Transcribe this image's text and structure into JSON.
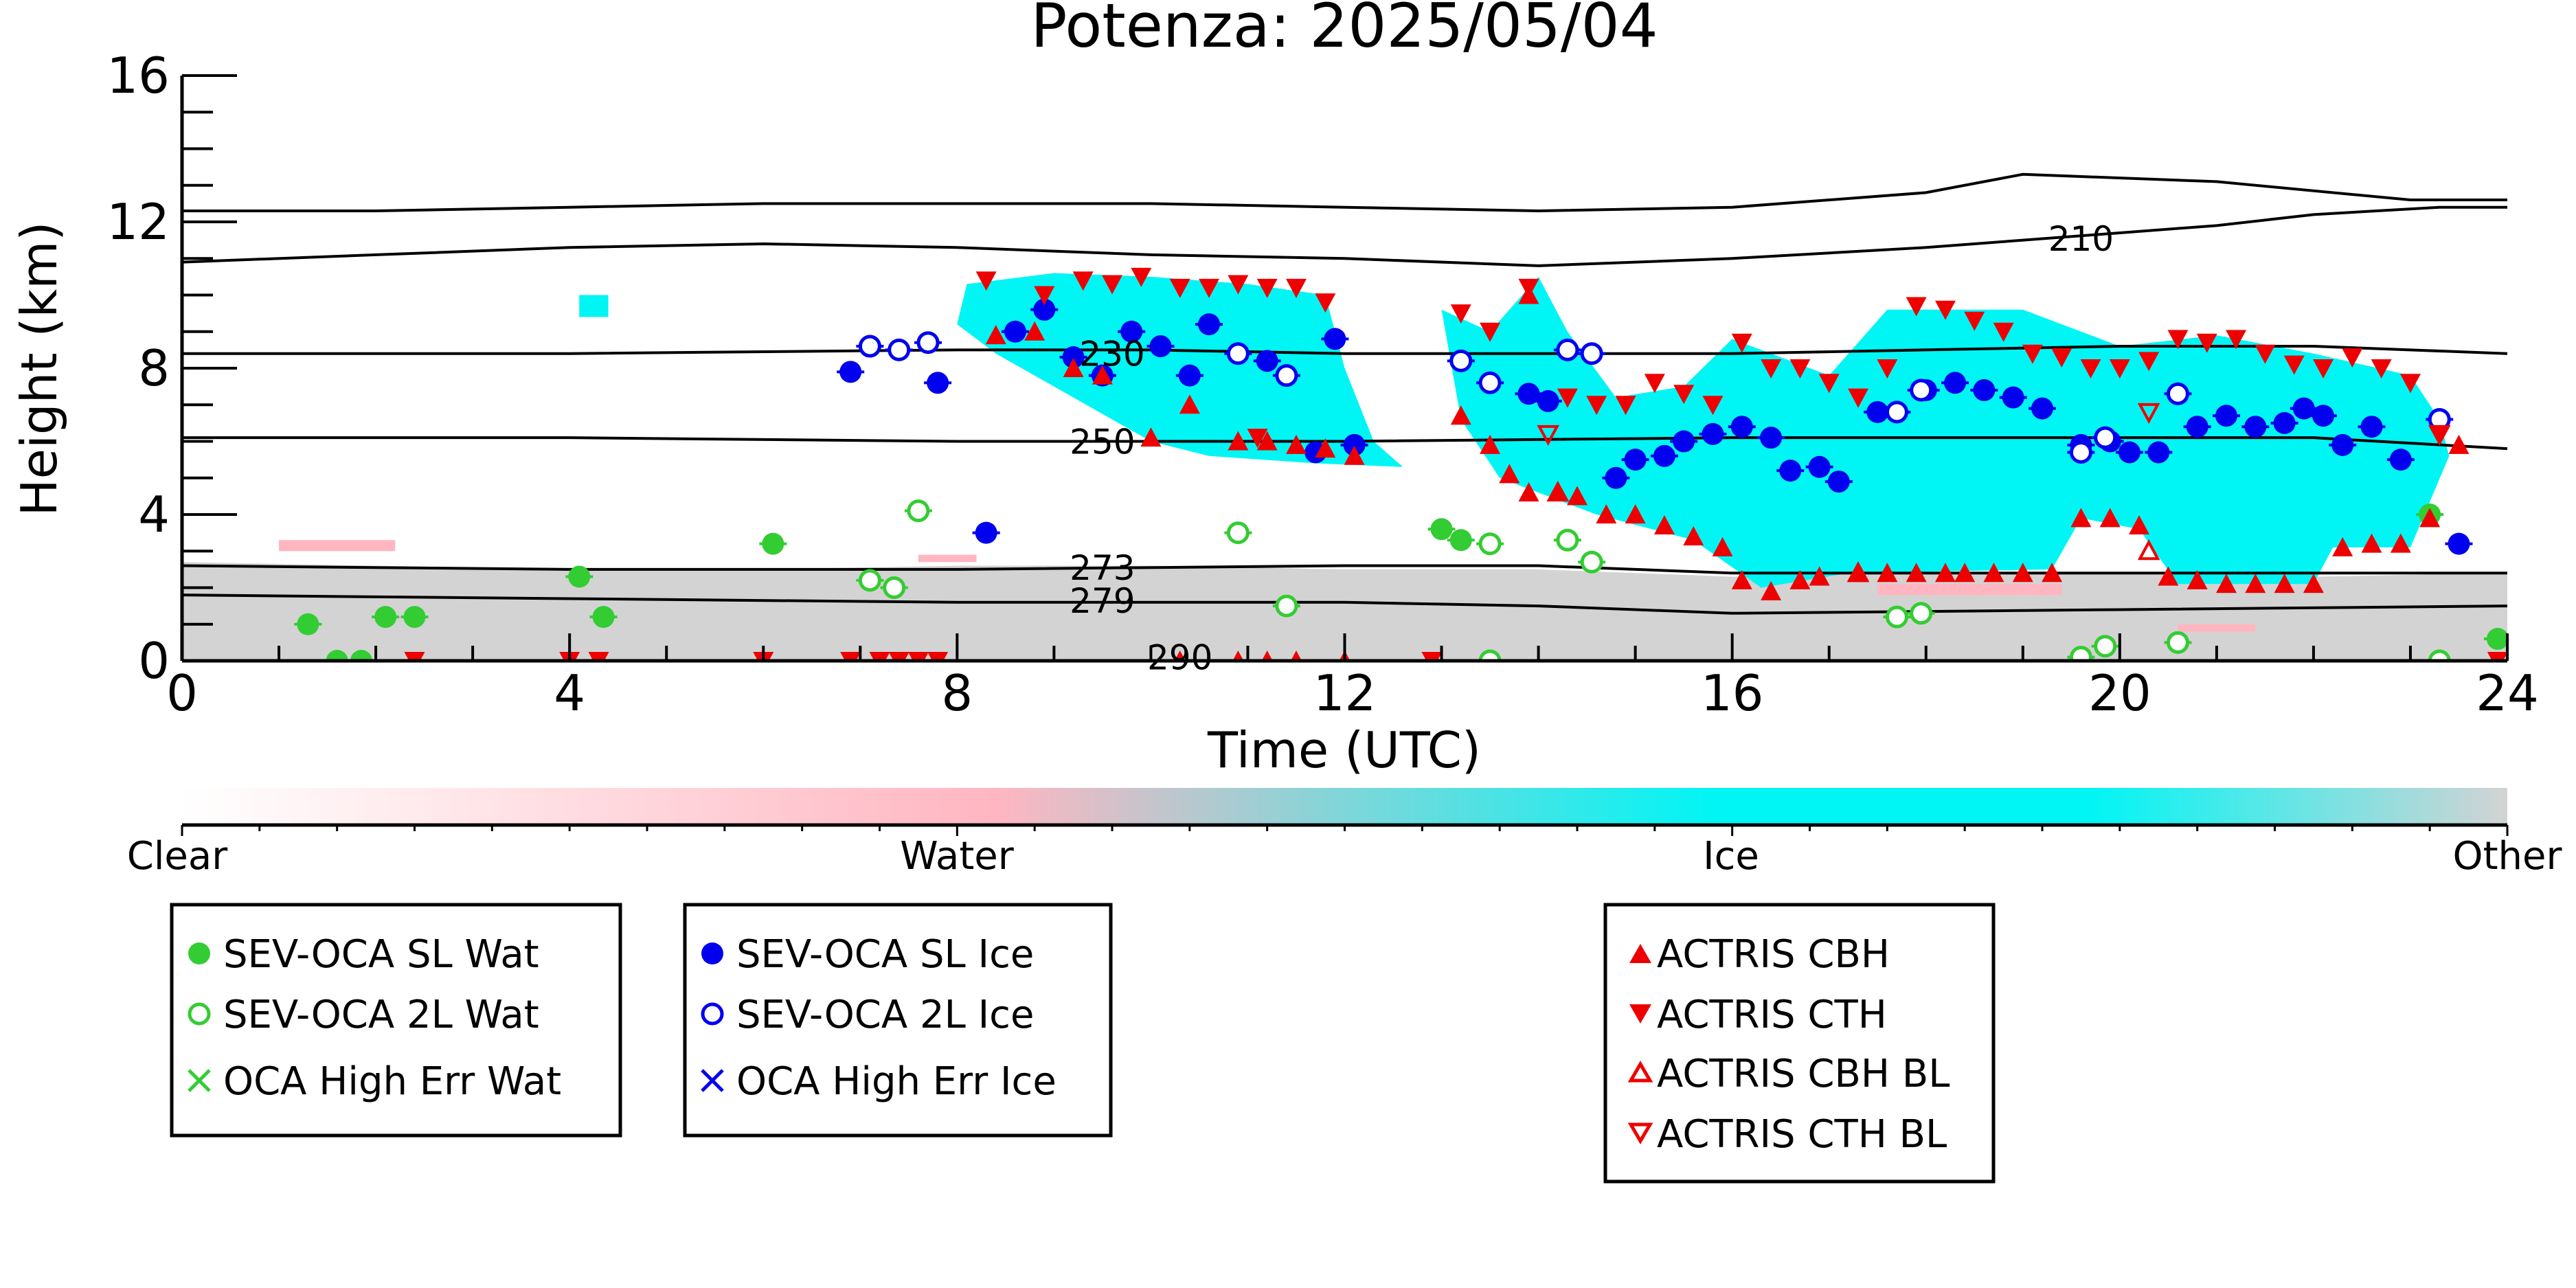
{
  "chart_data": {
    "type": "scatter",
    "title": "Potenza: 2025/05/04",
    "xlabel": "Time (UTC)",
    "ylabel": "Height (km)",
    "xlim": [
      0,
      24
    ],
    "ylim": [
      0,
      16
    ],
    "xticks": [
      0,
      4,
      8,
      12,
      16,
      20,
      24
    ],
    "yticks": [
      0,
      4,
      8,
      12,
      16
    ],
    "xtick_labels": [
      "0",
      "4",
      "8",
      "12",
      "16",
      "20",
      "24"
    ],
    "ytick_labels": [
      "0",
      "4",
      "8",
      "12",
      "16"
    ],
    "colorbar": {
      "labels": [
        "Clear",
        "Water",
        "Ice",
        "Other"
      ],
      "colors": [
        "#ffffff",
        "#ffb6c1",
        "#00f5f5",
        "#d3d3d3"
      ]
    },
    "contours": [
      {
        "label": "210",
        "points": [
          [
            0,
            12.3
          ],
          [
            2,
            12.3
          ],
          [
            4,
            12.4
          ],
          [
            6,
            12.5
          ],
          [
            8,
            12.5
          ],
          [
            10,
            12.5
          ],
          [
            12,
            12.4
          ],
          [
            14,
            12.3
          ],
          [
            16,
            12.4
          ],
          [
            18,
            12.8
          ],
          [
            19,
            13.3
          ],
          [
            21,
            13.1
          ],
          [
            23,
            12.6
          ],
          [
            24,
            12.6
          ]
        ]
      },
      {
        "label": "210",
        "points": [
          [
            0,
            10.9
          ],
          [
            2,
            11.1
          ],
          [
            4,
            11.3
          ],
          [
            6,
            11.4
          ],
          [
            8,
            11.3
          ],
          [
            10,
            11.1
          ],
          [
            12,
            11.0
          ],
          [
            14,
            10.8
          ],
          [
            16,
            11.0
          ],
          [
            18,
            11.3
          ],
          [
            19,
            11.5
          ],
          [
            21,
            11.9
          ],
          [
            22,
            12.2
          ],
          [
            23.3,
            12.4
          ],
          [
            24,
            12.4
          ]
        ]
      },
      {
        "label": "230",
        "points": [
          [
            0,
            8.4
          ],
          [
            4,
            8.4
          ],
          [
            8,
            8.5
          ],
          [
            10,
            8.5
          ],
          [
            12,
            8.4
          ],
          [
            16,
            8.4
          ],
          [
            20,
            8.6
          ],
          [
            22,
            8.6
          ],
          [
            24,
            8.4
          ]
        ]
      },
      {
        "label": "250",
        "points": [
          [
            0,
            6.1
          ],
          [
            4,
            6.1
          ],
          [
            8,
            6.0
          ],
          [
            10,
            6.0
          ],
          [
            12,
            6.0
          ],
          [
            16,
            6.1
          ],
          [
            20,
            6.1
          ],
          [
            22,
            6.1
          ],
          [
            24,
            5.8
          ]
        ]
      },
      {
        "label": "273",
        "points": [
          [
            0,
            2.6
          ],
          [
            4,
            2.5
          ],
          [
            8,
            2.5
          ],
          [
            12,
            2.6
          ],
          [
            14,
            2.6
          ],
          [
            16,
            2.4
          ],
          [
            20,
            2.4
          ],
          [
            24,
            2.4
          ]
        ]
      },
      {
        "label": "279",
        "points": [
          [
            0,
            1.8
          ],
          [
            4,
            1.7
          ],
          [
            8,
            1.6
          ],
          [
            12,
            1.6
          ],
          [
            14,
            1.5
          ],
          [
            16,
            1.3
          ],
          [
            20,
            1.4
          ],
          [
            24,
            1.5
          ]
        ]
      },
      {
        "label": "290",
        "points": []
      }
    ],
    "series": [
      {
        "name": "SEV-OCA SL Wat",
        "marker": "filled-circle",
        "color": "#33cc33",
        "points": [
          [
            1.3,
            1.0
          ],
          [
            2.1,
            1.2
          ],
          [
            2.4,
            1.2
          ],
          [
            4.1,
            2.3
          ],
          [
            4.35,
            1.2
          ],
          [
            6.1,
            3.2
          ],
          [
            13.0,
            3.6
          ],
          [
            13.2,
            3.3
          ],
          [
            23.2,
            4.0
          ],
          [
            23.9,
            0.6
          ],
          [
            1.6,
            0.0
          ],
          [
            1.85,
            0.0
          ]
        ]
      },
      {
        "name": "SEV-OCA 2L Wat",
        "marker": "open-circle",
        "color": "#33cc33",
        "points": [
          [
            7.1,
            2.2
          ],
          [
            7.35,
            2.0
          ],
          [
            7.6,
            4.1
          ],
          [
            10.9,
            3.5
          ],
          [
            11.4,
            1.5
          ],
          [
            13.5,
            3.2
          ],
          [
            14.3,
            3.3
          ],
          [
            14.55,
            2.7
          ],
          [
            17.7,
            1.2
          ],
          [
            17.95,
            1.3
          ],
          [
            19.6,
            0.1
          ],
          [
            19.85,
            0.4
          ],
          [
            20.6,
            0.5
          ],
          [
            13.5,
            0.0
          ],
          [
            23.3,
            0.0
          ]
        ]
      },
      {
        "name": "OCA High Err Wat",
        "marker": "x",
        "color": "#33cc33",
        "points": []
      },
      {
        "name": "SEV-OCA SL Ice",
        "marker": "filled-circle",
        "color": "#0000ee",
        "points": [
          [
            6.9,
            7.9
          ],
          [
            7.8,
            7.6
          ],
          [
            8.3,
            3.5
          ],
          [
            8.6,
            9.0
          ],
          [
            8.9,
            9.6
          ],
          [
            9.2,
            8.3
          ],
          [
            9.5,
            7.8
          ],
          [
            9.8,
            9.0
          ],
          [
            10.1,
            8.6
          ],
          [
            10.4,
            7.8
          ],
          [
            10.6,
            9.2
          ],
          [
            11.2,
            8.2
          ],
          [
            11.7,
            5.7
          ],
          [
            12.1,
            5.9
          ],
          [
            11.9,
            8.8
          ],
          [
            13.9,
            7.3
          ],
          [
            14.1,
            7.1
          ],
          [
            14.8,
            5.0
          ],
          [
            15.0,
            5.5
          ],
          [
            15.3,
            5.6
          ],
          [
            15.5,
            6.0
          ],
          [
            15.8,
            6.2
          ],
          [
            16.1,
            6.4
          ],
          [
            16.4,
            6.1
          ],
          [
            16.6,
            5.2
          ],
          [
            16.9,
            5.3
          ],
          [
            17.1,
            4.9
          ],
          [
            17.5,
            6.8
          ],
          [
            18.0,
            7.4
          ],
          [
            18.3,
            7.6
          ],
          [
            18.6,
            7.4
          ],
          [
            18.9,
            7.2
          ],
          [
            19.2,
            6.9
          ],
          [
            19.6,
            5.9
          ],
          [
            19.9,
            6.0
          ],
          [
            20.1,
            5.7
          ],
          [
            20.4,
            5.7
          ],
          [
            20.8,
            6.4
          ],
          [
            21.1,
            6.7
          ],
          [
            21.4,
            6.4
          ],
          [
            21.7,
            6.5
          ],
          [
            21.9,
            6.9
          ],
          [
            22.1,
            6.7
          ],
          [
            22.3,
            5.9
          ],
          [
            22.6,
            6.4
          ],
          [
            22.9,
            5.5
          ],
          [
            23.5,
            3.2
          ]
        ]
      },
      {
        "name": "SEV-OCA 2L Ice",
        "marker": "open-circle",
        "color": "#0000ee",
        "points": [
          [
            7.1,
            8.6
          ],
          [
            7.4,
            8.5
          ],
          [
            7.7,
            8.7
          ],
          [
            10.9,
            8.4
          ],
          [
            11.4,
            7.8
          ],
          [
            13.2,
            8.2
          ],
          [
            13.5,
            7.6
          ],
          [
            14.3,
            8.5
          ],
          [
            14.55,
            8.4
          ],
          [
            17.7,
            6.8
          ],
          [
            17.95,
            7.4
          ],
          [
            19.6,
            5.7
          ],
          [
            19.85,
            6.1
          ],
          [
            20.6,
            7.3
          ],
          [
            23.3,
            6.6
          ]
        ]
      },
      {
        "name": "OCA High Err Ice",
        "marker": "x",
        "color": "#0000ee",
        "points": []
      },
      {
        "name": "ACTRIS CBH",
        "marker": "triangle-up",
        "color": "#ee0000",
        "points": [
          [
            8.4,
            8.9
          ],
          [
            8.8,
            9.0
          ],
          [
            9.2,
            8.0
          ],
          [
            9.5,
            7.8
          ],
          [
            10.0,
            6.1
          ],
          [
            10.4,
            7.0
          ],
          [
            10.9,
            6.0
          ],
          [
            11.2,
            6.0
          ],
          [
            11.5,
            5.9
          ],
          [
            11.8,
            5.8
          ],
          [
            12.1,
            5.6
          ],
          [
            13.2,
            6.7
          ],
          [
            13.5,
            5.9
          ],
          [
            13.7,
            5.1
          ],
          [
            13.9,
            4.6
          ],
          [
            14.2,
            4.6
          ],
          [
            14.4,
            4.5
          ],
          [
            14.7,
            4.0
          ],
          [
            15.0,
            4.0
          ],
          [
            15.3,
            3.7
          ],
          [
            15.6,
            3.4
          ],
          [
            15.9,
            3.1
          ],
          [
            16.1,
            2.2
          ],
          [
            16.4,
            1.9
          ],
          [
            16.7,
            2.2
          ],
          [
            16.9,
            2.3
          ],
          [
            17.3,
            2.4
          ],
          [
            17.6,
            2.4
          ],
          [
            17.9,
            2.4
          ],
          [
            18.2,
            2.4
          ],
          [
            18.4,
            2.4
          ],
          [
            18.7,
            2.4
          ],
          [
            19.0,
            2.4
          ],
          [
            19.3,
            2.4
          ],
          [
            19.6,
            3.9
          ],
          [
            19.9,
            3.9
          ],
          [
            20.2,
            3.7
          ],
          [
            20.5,
            2.3
          ],
          [
            20.8,
            2.2
          ],
          [
            21.1,
            2.1
          ],
          [
            21.4,
            2.1
          ],
          [
            21.7,
            2.1
          ],
          [
            22.0,
            2.1
          ],
          [
            22.3,
            3.1
          ],
          [
            22.6,
            3.2
          ],
          [
            22.9,
            3.2
          ],
          [
            23.2,
            3.9
          ],
          [
            23.5,
            5.9
          ],
          [
            13.9,
            10.0
          ],
          [
            10.3,
            0.0
          ],
          [
            10.9,
            0.0
          ],
          [
            11.2,
            0.0
          ],
          [
            11.5,
            0.0
          ],
          [
            12.0,
            0.0
          ]
        ]
      },
      {
        "name": "ACTRIS CTH",
        "marker": "triangle-down",
        "color": "#ee0000",
        "points": [
          [
            8.3,
            10.4
          ],
          [
            8.9,
            10.0
          ],
          [
            9.3,
            10.4
          ],
          [
            9.6,
            10.3
          ],
          [
            9.9,
            10.5
          ],
          [
            10.3,
            10.2
          ],
          [
            10.6,
            10.2
          ],
          [
            10.9,
            10.3
          ],
          [
            11.2,
            10.2
          ],
          [
            11.5,
            10.2
          ],
          [
            11.8,
            9.8
          ],
          [
            13.2,
            9.5
          ],
          [
            13.5,
            9.0
          ],
          [
            13.9,
            10.2
          ],
          [
            14.3,
            7.2
          ],
          [
            14.6,
            7.0
          ],
          [
            14.9,
            7.0
          ],
          [
            15.2,
            7.6
          ],
          [
            15.5,
            7.3
          ],
          [
            15.8,
            7.0
          ],
          [
            16.1,
            8.7
          ],
          [
            16.4,
            8.0
          ],
          [
            16.7,
            8.0
          ],
          [
            17.0,
            7.6
          ],
          [
            17.3,
            7.2
          ],
          [
            17.6,
            8.0
          ],
          [
            17.9,
            9.7
          ],
          [
            18.2,
            9.6
          ],
          [
            18.5,
            9.3
          ],
          [
            18.8,
            9.0
          ],
          [
            19.1,
            8.4
          ],
          [
            19.4,
            8.3
          ],
          [
            19.7,
            8.0
          ],
          [
            20.0,
            8.0
          ],
          [
            20.3,
            8.2
          ],
          [
            20.6,
            8.8
          ],
          [
            20.9,
            8.7
          ],
          [
            21.2,
            8.8
          ],
          [
            21.5,
            8.4
          ],
          [
            21.8,
            8.1
          ],
          [
            22.1,
            8.0
          ],
          [
            22.4,
            8.3
          ],
          [
            22.7,
            8.0
          ],
          [
            23.0,
            7.6
          ],
          [
            23.3,
            6.2
          ],
          [
            11.1,
            6.1
          ],
          [
            2.4,
            0.0
          ],
          [
            4.0,
            0.0
          ],
          [
            4.3,
            0.0
          ],
          [
            6.0,
            0.0
          ],
          [
            6.9,
            0.0
          ],
          [
            7.2,
            0.0
          ],
          [
            7.4,
            0.0
          ],
          [
            7.6,
            0.0
          ],
          [
            7.8,
            0.0
          ],
          [
            12.9,
            0.0
          ],
          [
            23.9,
            0.0
          ]
        ]
      },
      {
        "name": "ACTRIS CBH BL",
        "marker": "open-triangle-up",
        "color": "#ee0000",
        "points": [
          [
            14.2,
            4.6
          ],
          [
            17.3,
            2.4
          ],
          [
            20.3,
            3.0
          ]
        ]
      },
      {
        "name": "ACTRIS CTH BL",
        "marker": "open-triangle-down",
        "color": "#ee0000",
        "points": [
          [
            14.1,
            6.2
          ],
          [
            20.3,
            6.8
          ],
          [
            23.3,
            6.2
          ]
        ]
      }
    ],
    "legends": [
      [
        "SEV-OCA SL Wat",
        "SEV-OCA 2L Wat",
        "OCA High Err Wat"
      ],
      [
        "SEV-OCA SL Ice",
        "SEV-OCA 2L Ice",
        "OCA High Err Ice"
      ],
      [
        "ACTRIS CBH",
        "ACTRIS CTH",
        "ACTRIS CBH BL",
        "ACTRIS CTH BL"
      ]
    ]
  }
}
